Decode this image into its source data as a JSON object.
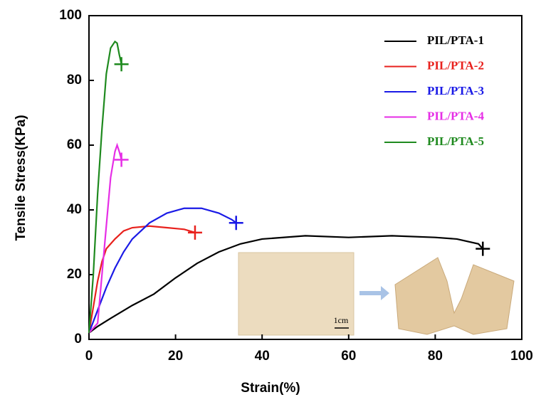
{
  "chart_data": {
    "type": "line",
    "x_label": "Strain(%)",
    "y_label": "Tensile Stress(KPa)",
    "xlim": [
      0,
      100
    ],
    "ylim": [
      0,
      100
    ],
    "xticks": [
      0,
      20,
      40,
      60,
      80,
      100
    ],
    "yticks": [
      0,
      20,
      40,
      60,
      80,
      100
    ],
    "legend": "upper right",
    "annotations": [
      "1cm"
    ],
    "series": [
      {
        "name": "PIL/PTA-1",
        "color": "#000000",
        "x": [
          0,
          2,
          5,
          10,
          15,
          20,
          25,
          30,
          35,
          40,
          50,
          60,
          70,
          80,
          85,
          90,
          91
        ],
        "y": [
          2,
          4,
          6.5,
          10.5,
          14,
          19,
          23.5,
          27,
          29.5,
          31,
          32,
          31.5,
          32,
          31.5,
          31,
          29.5,
          28
        ]
      },
      {
        "name": "PIL/PTA-2",
        "color": "#e8211d",
        "x": [
          0,
          1,
          2,
          3,
          4,
          6,
          8,
          10,
          14,
          18,
          22,
          24.5
        ],
        "y": [
          2,
          10,
          18,
          24,
          28,
          31,
          33.5,
          34.5,
          35,
          34.5,
          34,
          33
        ]
      },
      {
        "name": "PIL/PTA-3",
        "color": "#1a1ae6",
        "x": [
          0,
          2,
          4,
          6,
          8,
          10,
          14,
          18,
          22,
          26,
          30,
          33,
          34
        ],
        "y": [
          2,
          9,
          16,
          22,
          27,
          31,
          36,
          39,
          40.5,
          40.5,
          39,
          37,
          36
        ]
      },
      {
        "name": "PIL/PTA-4",
        "color": "#e62ee6",
        "x": [
          0,
          2,
          3,
          4,
          5,
          6,
          6.5,
          7,
          7.5
        ],
        "y": [
          2,
          5,
          20,
          35,
          50,
          58,
          60,
          58,
          55.5
        ]
      },
      {
        "name": "PIL/PTA-5",
        "color": "#1f8a1f",
        "x": [
          0,
          1,
          2,
          3,
          4,
          5,
          6,
          6.5,
          7,
          7.5
        ],
        "y": [
          2,
          20,
          45,
          65,
          82,
          90,
          92,
          91.5,
          88,
          85
        ]
      }
    ]
  }
}
